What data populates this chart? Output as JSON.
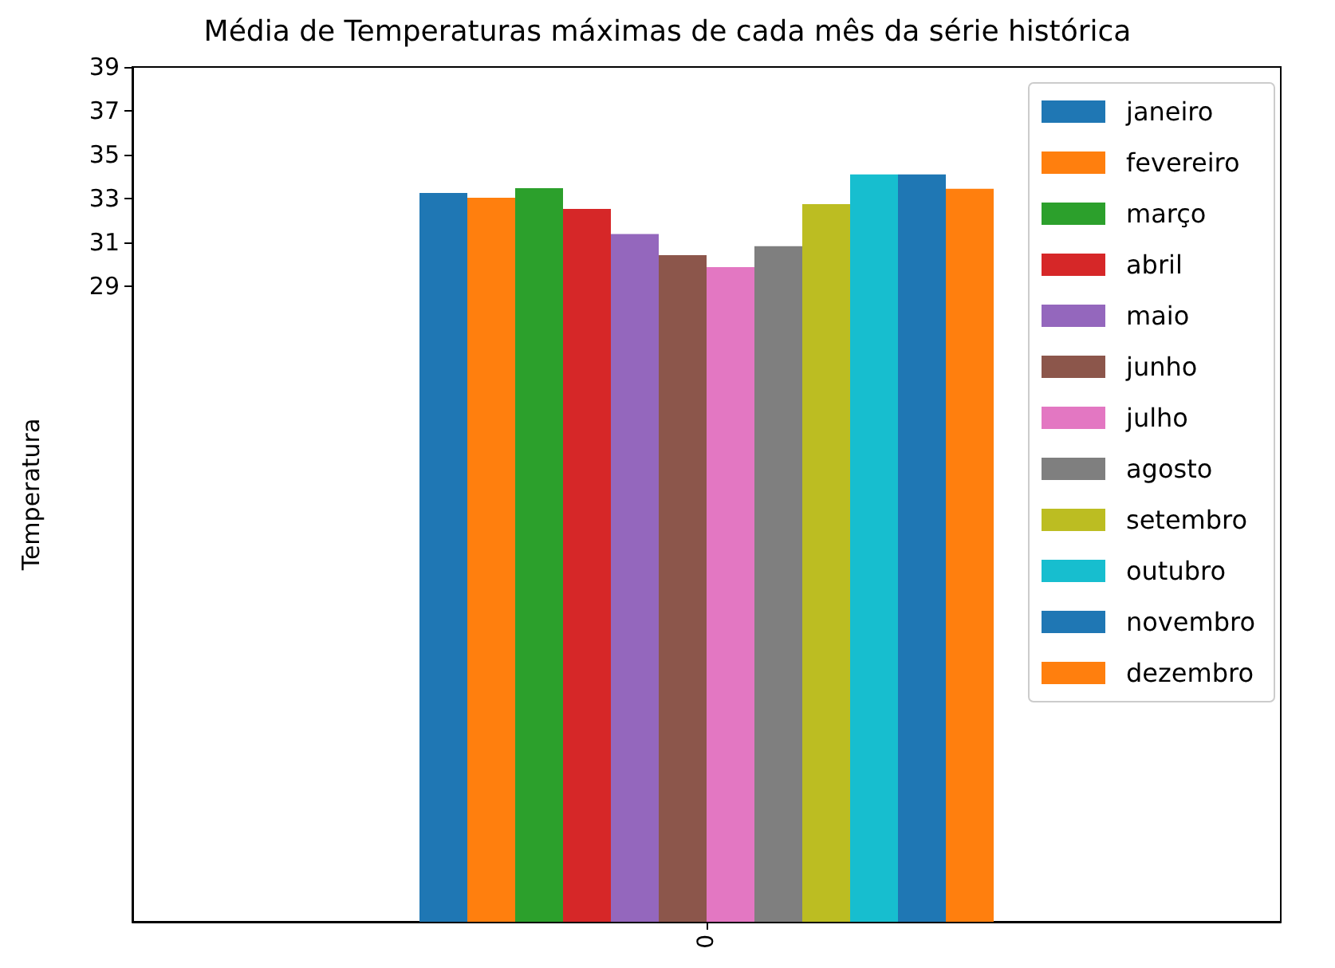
{
  "chart_data": {
    "type": "bar",
    "title": "Média de Temperaturas máximas de cada mês da série histórica",
    "ylabel": "Temperatura",
    "categories": [
      "0"
    ],
    "series": [
      {
        "name": "janeiro",
        "color": "#1f77b4",
        "values": [
          33.25
        ]
      },
      {
        "name": "fevereiro",
        "color": "#ff7f0e",
        "values": [
          33.03
        ]
      },
      {
        "name": "março",
        "color": "#2ca02c",
        "values": [
          33.47
        ]
      },
      {
        "name": "abril",
        "color": "#d62728",
        "values": [
          32.52
        ]
      },
      {
        "name": "maio",
        "color": "#9467bd",
        "values": [
          31.38
        ]
      },
      {
        "name": "junho",
        "color": "#8c564b",
        "values": [
          30.41
        ]
      },
      {
        "name": "julho",
        "color": "#e377c2",
        "values": [
          29.87
        ]
      },
      {
        "name": "agosto",
        "color": "#7f7f7f",
        "values": [
          30.82
        ]
      },
      {
        "name": "setembro",
        "color": "#bcbd22",
        "values": [
          32.74
        ]
      },
      {
        "name": "outubro",
        "color": "#17becf",
        "values": [
          34.1
        ]
      },
      {
        "name": "novembro",
        "color": "#1f77b4",
        "values": [
          34.1
        ]
      },
      {
        "name": "dezembro",
        "color": "#ff7f0e",
        "values": [
          33.44
        ]
      }
    ],
    "ylim": [
      0,
      39
    ],
    "yticks": [
      29,
      31,
      33,
      35,
      37,
      39
    ],
    "grid": false,
    "legend": "top right"
  }
}
